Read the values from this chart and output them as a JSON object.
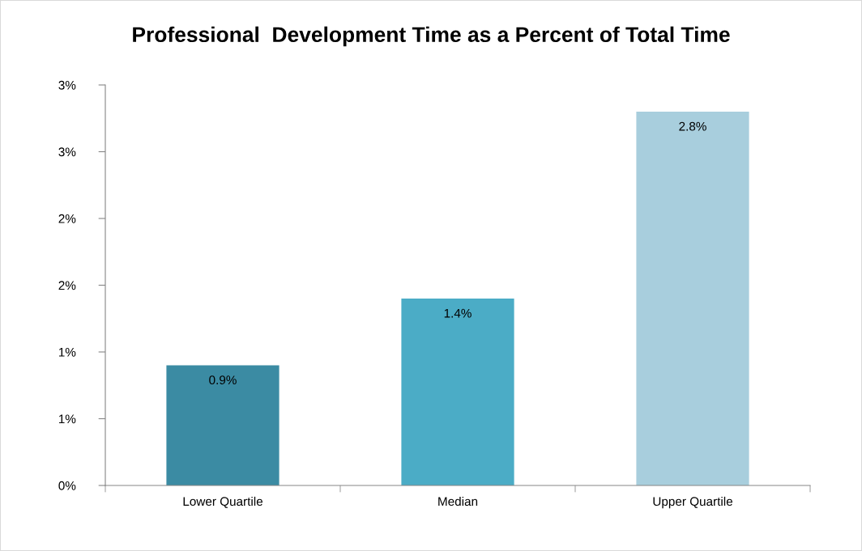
{
  "chart_data": {
    "type": "bar",
    "title": "Professional  Development Time as a Percent of Total Time",
    "categories": [
      "Lower Quartile",
      "Median",
      "Upper Quartile"
    ],
    "values": [
      0.9,
      1.4,
      2.8
    ],
    "colors": [
      "#3b8ba3",
      "#4bacc6",
      "#a8cedd"
    ],
    "ylim": [
      0,
      3
    ],
    "yticks": [
      {
        "value": 0,
        "label": "0%"
      },
      {
        "value": 0.5,
        "label": "1%"
      },
      {
        "value": 1,
        "label": "1%"
      },
      {
        "value": 1.5,
        "label": "2%"
      },
      {
        "value": 2,
        "label": "2%"
      },
      {
        "value": 2.5,
        "label": "3%"
      },
      {
        "value": 3,
        "label": "3%"
      }
    ],
    "value_labels": [
      "0.9%",
      "1.4%",
      "2.8%"
    ],
    "grid": false
  }
}
